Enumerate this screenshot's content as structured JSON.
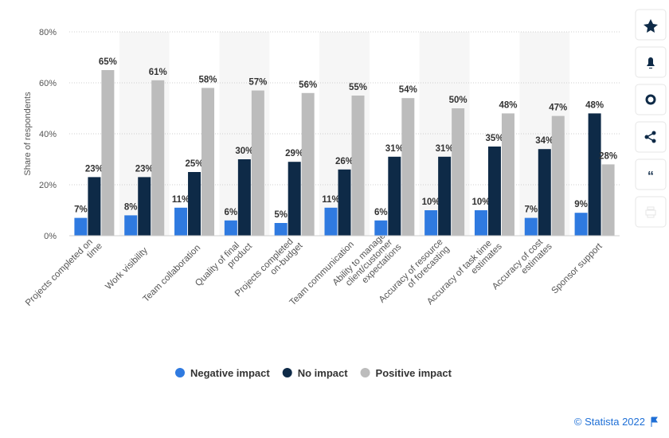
{
  "chart_data": {
    "type": "bar",
    "y_axis_label": "Share of respondents",
    "categories": [
      "Projects completed on time",
      "Work visibility",
      "Team collaboration",
      "Quality of final product",
      "Projects completed on-budget",
      "Team communication",
      "Ability to manage client/customer expectations",
      "Accuracy of resource of forecasting",
      "Accuracy of task time estimates",
      "Accuracy of cost estimates",
      "Sponsor support"
    ],
    "series": [
      {
        "name": "Negative impact",
        "color": "#2f7ae0",
        "values": [
          7,
          8,
          11,
          6,
          5,
          11,
          6,
          10,
          10,
          7,
          9
        ],
        "value_labels": [
          "7%",
          "8%",
          "11%",
          "6%",
          "5%",
          "11%",
          "6%",
          "10%",
          "10%",
          "7%",
          "9%"
        ]
      },
      {
        "name": "No impact",
        "color": "#0e2a47",
        "values": [
          23,
          23,
          25,
          30,
          29,
          26,
          31,
          31,
          35,
          34,
          48
        ],
        "value_labels": [
          "23%",
          "23%",
          "25%",
          "30%",
          "29%",
          "26%",
          "31%",
          "31%",
          "35%",
          "34%",
          "48%"
        ]
      },
      {
        "name": "Positive impact",
        "color": "#bcbcbc",
        "values": [
          65,
          61,
          58,
          57,
          56,
          55,
          54,
          50,
          48,
          47,
          28
        ],
        "value_labels": [
          "65%",
          "61%",
          "58%",
          "57%",
          "56%",
          "55%",
          "54%",
          "50%",
          "48%",
          "47%",
          "28%"
        ]
      }
    ],
    "ylim": [
      0,
      80
    ],
    "yticks": [
      {
        "value": 0,
        "label": "0%"
      },
      {
        "value": 20,
        "label": "20%"
      },
      {
        "value": 40,
        "label": "40%"
      },
      {
        "value": 60,
        "label": "60%"
      },
      {
        "value": 80,
        "label": "80%"
      }
    ],
    "grid": true,
    "legend": "bottom",
    "credit": "© Statista 2022"
  }
}
